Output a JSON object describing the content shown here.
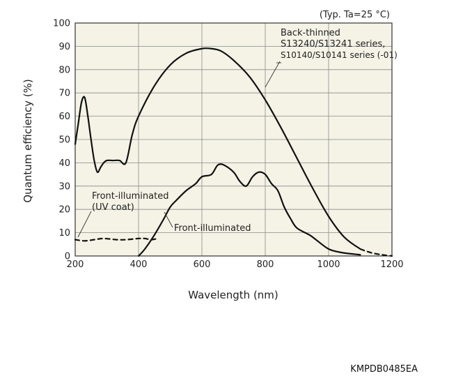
{
  "chart_data": {
    "type": "line",
    "condition": "(Typ. Ta=25 °C)",
    "xlabel": "Wavelength (nm)",
    "ylabel": "Quantum efficiency (%)",
    "xlim": [
      200,
      1200
    ],
    "ylim": [
      0,
      100
    ],
    "x_ticks": [
      200,
      400,
      600,
      800,
      1000,
      1200
    ],
    "y_ticks": [
      0,
      10,
      20,
      30,
      40,
      50,
      60,
      70,
      80,
      90,
      100
    ],
    "grid": true,
    "background": "#f4f3e6",
    "series": [
      {
        "name_lines": [
          "Back-thinned",
          "S13240/S13241 series,",
          "S10140/S10141 series (-01)"
        ],
        "style": "solid",
        "x": [
          200,
          210,
          220,
          230,
          240,
          250,
          260,
          270,
          280,
          290,
          300,
          320,
          340,
          360,
          380,
          400,
          450,
          500,
          550,
          600,
          630,
          660,
          700,
          750,
          800,
          850,
          900,
          950,
          1000,
          1050,
          1100
        ],
        "y": [
          48,
          57,
          66,
          68,
          60,
          50,
          41,
          36,
          38,
          40,
          41,
          41,
          41,
          40,
          52,
          60,
          73,
          82,
          87,
          89,
          89,
          88,
          84,
          77,
          67,
          55,
          42,
          29,
          17,
          8,
          3
        ]
      },
      {
        "name": "",
        "style": "dashed",
        "x": [
          1100,
          1120,
          1140,
          1160,
          1180,
          1200
        ],
        "y": [
          3,
          2,
          1.2,
          0.7,
          0.3,
          0
        ]
      },
      {
        "name": "Front-illuminated",
        "style": "solid",
        "x": [
          400,
          420,
          450,
          480,
          500,
          520,
          550,
          580,
          600,
          630,
          650,
          670,
          700,
          720,
          740,
          760,
          780,
          800,
          820,
          840,
          860,
          880,
          900,
          940,
          960,
          1000,
          1040,
          1080,
          1100
        ],
        "y": [
          0,
          3,
          9,
          16,
          21,
          24,
          28,
          31,
          34,
          35,
          39,
          39,
          36,
          32,
          30,
          34,
          36,
          35,
          31,
          28,
          21,
          16,
          12,
          9,
          7,
          3,
          1.5,
          0.8,
          0.5
        ]
      },
      {
        "name_lines": [
          "Front-illuminated",
          "(UV coat)"
        ],
        "style": "dashed",
        "x": [
          200,
          230,
          260,
          290,
          330,
          360,
          400,
          420,
          440,
          460
        ],
        "y": [
          7,
          6.5,
          7,
          7.5,
          7,
          7,
          7.5,
          7.5,
          7,
          7.5
        ]
      }
    ]
  },
  "footer": {
    "code": "KMPDB0485EA"
  }
}
